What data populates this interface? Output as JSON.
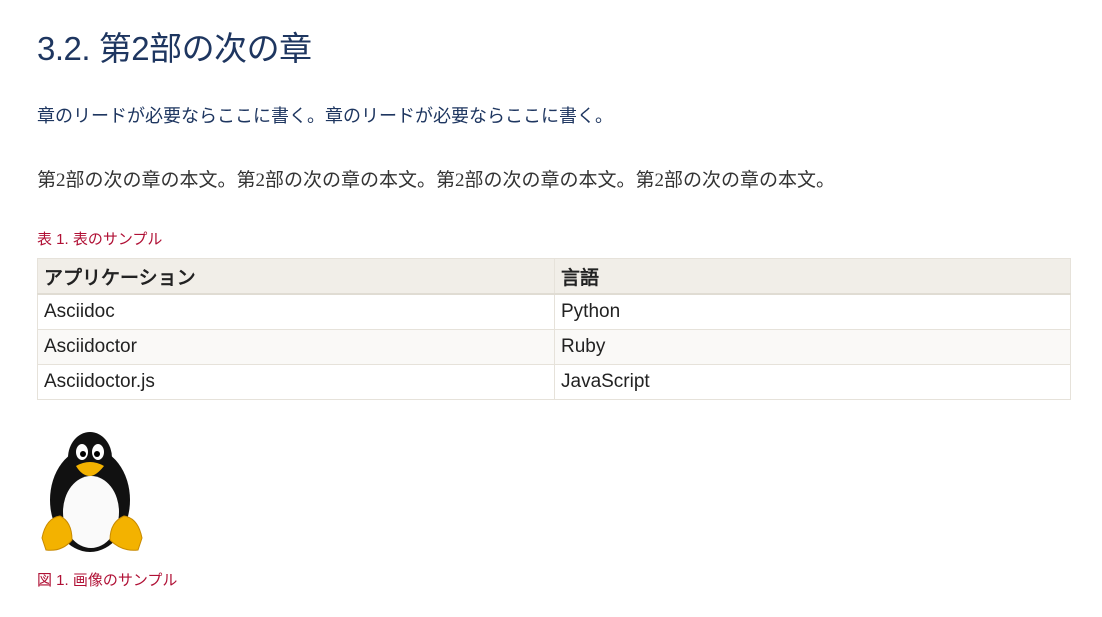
{
  "section": {
    "title": "3.2. 第2部の次の章",
    "lead": "章のリードが必要ならここに書く。章のリードが必要ならここに書く。",
    "body": "第2部の次の章の本文。第2部の次の章の本文。第2部の次の章の本文。第2部の次の章の本文。"
  },
  "table": {
    "caption": "表 1. 表のサンプル",
    "headers": [
      "アプリケーション",
      "言語"
    ],
    "rows": [
      [
        "Asciidoc",
        "Python"
      ],
      [
        "Asciidoctor",
        "Ruby"
      ],
      [
        "Asciidoctor.js",
        "JavaScript"
      ]
    ]
  },
  "figure": {
    "icon": "tux-penguin",
    "caption": "図 1. 画像のサンプル"
  },
  "colors": {
    "heading": "#1e3660",
    "caption": "#b01035"
  }
}
